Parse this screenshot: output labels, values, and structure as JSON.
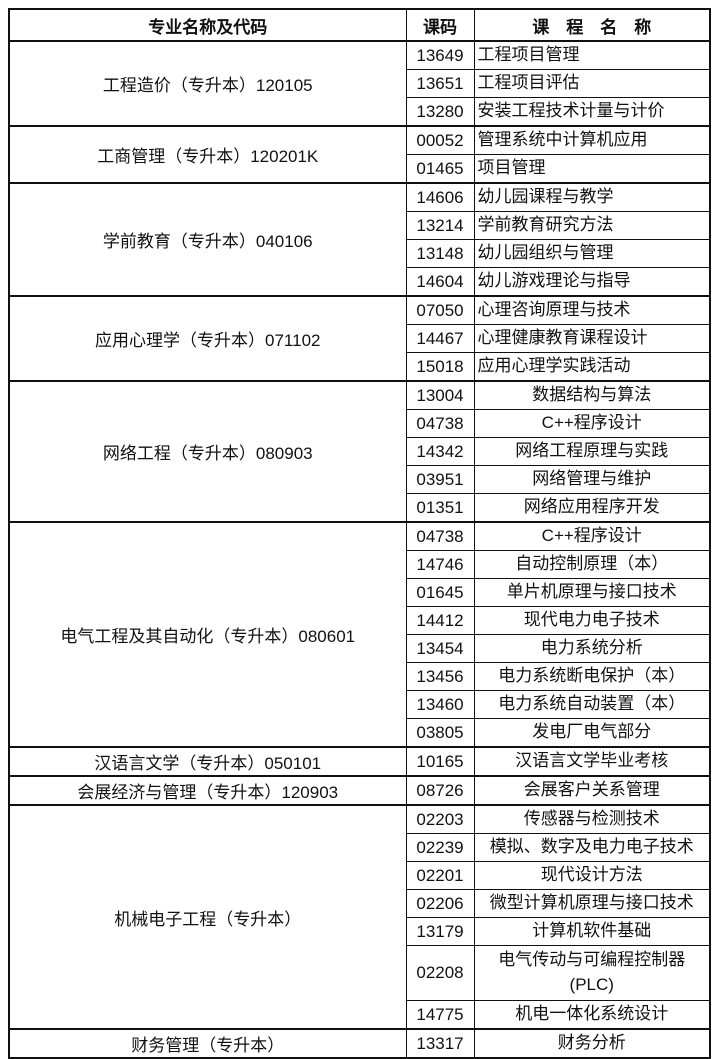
{
  "table": {
    "headers": {
      "major": "专业名称及代码",
      "code": "课码",
      "course": "课　程　名　称"
    },
    "groups": [
      {
        "major": "工程造价（专升本）120105",
        "align": "left",
        "courses": [
          {
            "code": "13649",
            "name": "工程项目管理"
          },
          {
            "code": "13651",
            "name": "工程项目评估"
          },
          {
            "code": "13280",
            "name": "安装工程技术计量与计价"
          }
        ]
      },
      {
        "major": "工商管理（专升本）120201K",
        "align": "left",
        "courses": [
          {
            "code": "00052",
            "name": "管理系统中计算机应用"
          },
          {
            "code": "01465",
            "name": "项目管理"
          }
        ]
      },
      {
        "major": "学前教育（专升本）040106",
        "align": "left",
        "courses": [
          {
            "code": "14606",
            "name": "幼儿园课程与教学"
          },
          {
            "code": "13214",
            "name": "学前教育研究方法"
          },
          {
            "code": "13148",
            "name": "幼儿园组织与管理"
          },
          {
            "code": "14604",
            "name": "幼儿游戏理论与指导"
          }
        ]
      },
      {
        "major": "应用心理学（专升本）071102",
        "align": "left",
        "courses": [
          {
            "code": "07050",
            "name": "心理咨询原理与技术"
          },
          {
            "code": "14467",
            "name": "心理健康教育课程设计"
          },
          {
            "code": "15018",
            "name": "应用心理学实践活动"
          }
        ]
      },
      {
        "major": "网络工程（专升本）080903",
        "align": "center",
        "courses": [
          {
            "code": "13004",
            "name": "数据结构与算法"
          },
          {
            "code": "04738",
            "name": "C++程序设计"
          },
          {
            "code": "14342",
            "name": "网络工程原理与实践"
          },
          {
            "code": "03951",
            "name": "网络管理与维护"
          },
          {
            "code": "01351",
            "name": "网络应用程序开发"
          }
        ]
      },
      {
        "major": "电气工程及其自动化（专升本）080601",
        "align": "center",
        "courses": [
          {
            "code": "04738",
            "name": "C++程序设计"
          },
          {
            "code": "14746",
            "name": "自动控制原理（本）"
          },
          {
            "code": "01645",
            "name": "单片机原理与接口技术"
          },
          {
            "code": "14412",
            "name": "现代电力电子技术"
          },
          {
            "code": "13454",
            "name": "电力系统分析"
          },
          {
            "code": "13456",
            "name": "电力系统断电保护（本）"
          },
          {
            "code": "13460",
            "name": "电力系统自动装置（本）"
          },
          {
            "code": "03805",
            "name": "发电厂电气部分"
          }
        ]
      },
      {
        "major": "汉语言文学（专升本）050101",
        "align": "center",
        "courses": [
          {
            "code": "10165",
            "name": "汉语言文学毕业考核"
          }
        ]
      },
      {
        "major": "会展经济与管理（专升本）120903",
        "align": "center",
        "courses": [
          {
            "code": "08726",
            "name": "会展客户关系管理"
          }
        ]
      },
      {
        "major": "机械电子工程（专升本）",
        "align": "center",
        "courses": [
          {
            "code": "02203",
            "name": "传感器与检测技术"
          },
          {
            "code": "02239",
            "name": "模拟、数字及电力电子技术"
          },
          {
            "code": "02201",
            "name": "现代设计方法"
          },
          {
            "code": "02206",
            "name": "微型计算机原理与接口技术"
          },
          {
            "code": "13179",
            "name": "计算机软件基础"
          },
          {
            "code": "02208",
            "name": "电气传动与可编程控制器\n(PLC)"
          },
          {
            "code": "14775",
            "name": "机电一体化系统设计"
          }
        ]
      },
      {
        "major": "财务管理（专升本）",
        "align": "center",
        "courses": [
          {
            "code": "13317",
            "name": "财务分析"
          }
        ]
      }
    ]
  }
}
